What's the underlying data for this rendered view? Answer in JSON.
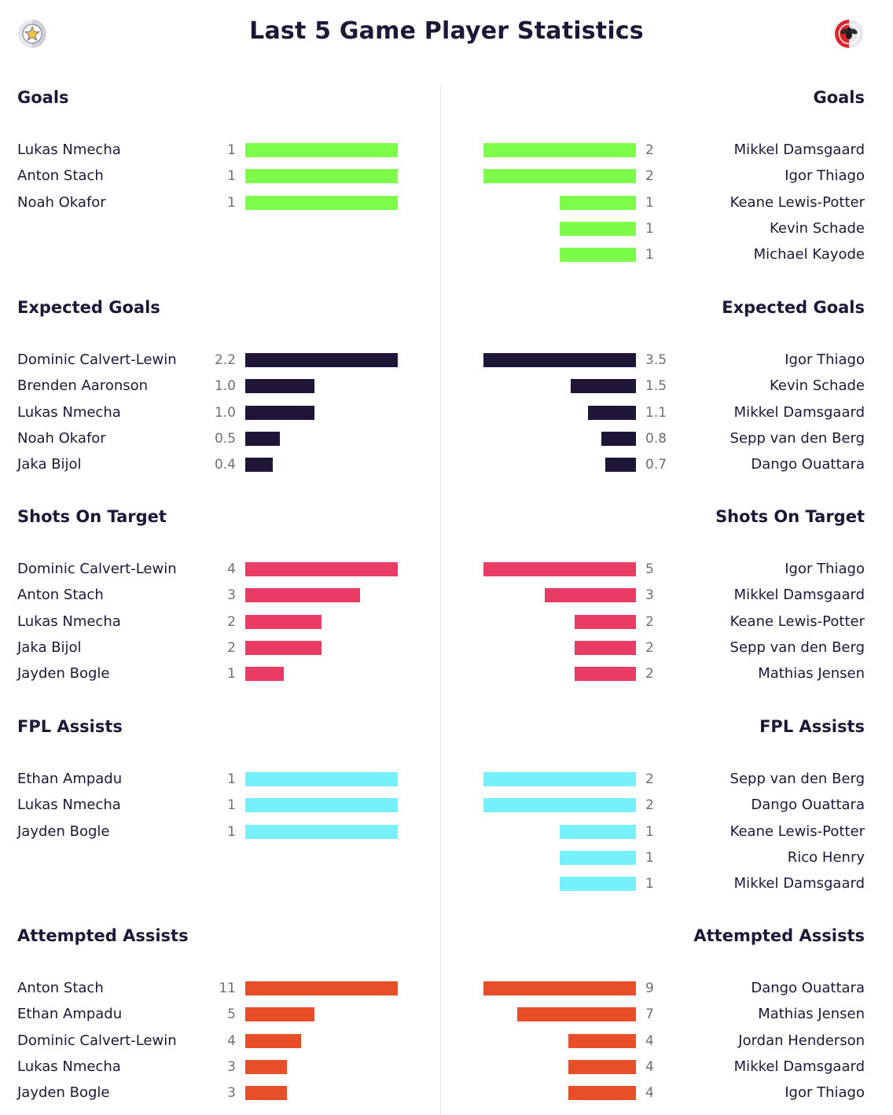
{
  "title": "Last 5 Game Player Statistics",
  "logos": {
    "left": "wolverhampton-wolves-style-crest-icon",
    "right": "brentford-bee-crest-icon"
  },
  "chart_data": [
    {
      "type": "bar",
      "title": "Goals",
      "color": "#7dfc4a",
      "left": [
        {
          "name": "Lukas Nmecha",
          "label": "1",
          "value": 1
        },
        {
          "name": "Anton Stach",
          "label": "1",
          "value": 1
        },
        {
          "name": "Noah Okafor",
          "label": "1",
          "value": 1
        }
      ],
      "right": [
        {
          "name": "Mikkel Damsgaard",
          "label": "2",
          "value": 2
        },
        {
          "name": "Igor Thiago",
          "label": "2",
          "value": 2
        },
        {
          "name": "Keane Lewis-Potter",
          "label": "1",
          "value": 1
        },
        {
          "name": "Kevin Schade",
          "label": "1",
          "value": 1
        },
        {
          "name": "Michael Kayode",
          "label": "1",
          "value": 1
        }
      ]
    },
    {
      "type": "bar",
      "title": "Expected Goals",
      "color": "#1e1537",
      "left": [
        {
          "name": "Dominic Calvert-Lewin",
          "label": "2.2",
          "value": 2.2
        },
        {
          "name": "Brenden Aaronson",
          "label": "1.0",
          "value": 1.0
        },
        {
          "name": "Lukas Nmecha",
          "label": "1.0",
          "value": 1.0
        },
        {
          "name": "Noah Okafor",
          "label": "0.5",
          "value": 0.5
        },
        {
          "name": "Jaka Bijol",
          "label": "0.4",
          "value": 0.4
        }
      ],
      "right": [
        {
          "name": "Igor Thiago",
          "label": "3.5",
          "value": 3.5
        },
        {
          "name": "Kevin Schade",
          "label": "1.5",
          "value": 1.5
        },
        {
          "name": "Mikkel Damsgaard",
          "label": "1.1",
          "value": 1.1
        },
        {
          "name": "Sepp van den Berg",
          "label": "0.8",
          "value": 0.8
        },
        {
          "name": "Dango Ouattara",
          "label": "0.7",
          "value": 0.7
        }
      ]
    },
    {
      "type": "bar",
      "title": "Shots On Target",
      "color": "#e83c64",
      "left": [
        {
          "name": "Dominic Calvert-Lewin",
          "label": "4",
          "value": 4
        },
        {
          "name": "Anton Stach",
          "label": "3",
          "value": 3
        },
        {
          "name": "Lukas Nmecha",
          "label": "2",
          "value": 2
        },
        {
          "name": "Jaka Bijol",
          "label": "2",
          "value": 2
        },
        {
          "name": "Jayden Bogle",
          "label": "1",
          "value": 1
        }
      ],
      "right": [
        {
          "name": "Igor Thiago",
          "label": "5",
          "value": 5
        },
        {
          "name": "Mikkel Damsgaard",
          "label": "3",
          "value": 3
        },
        {
          "name": "Keane Lewis-Potter",
          "label": "2",
          "value": 2
        },
        {
          "name": "Sepp van den Berg",
          "label": "2",
          "value": 2
        },
        {
          "name": "Mathias Jensen",
          "label": "2",
          "value": 2
        }
      ]
    },
    {
      "type": "bar",
      "title": "FPL Assists",
      "color": "#76f0fa",
      "left": [
        {
          "name": "Ethan Ampadu",
          "label": "1",
          "value": 1
        },
        {
          "name": "Lukas Nmecha",
          "label": "1",
          "value": 1
        },
        {
          "name": "Jayden Bogle",
          "label": "1",
          "value": 1
        }
      ],
      "right": [
        {
          "name": "Sepp van den Berg",
          "label": "2",
          "value": 2
        },
        {
          "name": "Dango Ouattara",
          "label": "2",
          "value": 2
        },
        {
          "name": "Keane Lewis-Potter",
          "label": "1",
          "value": 1
        },
        {
          "name": "Rico Henry",
          "label": "1",
          "value": 1
        },
        {
          "name": "Mikkel Damsgaard",
          "label": "1",
          "value": 1
        }
      ]
    },
    {
      "type": "bar",
      "title": "Attempted Assists",
      "color": "#e84e28",
      "left": [
        {
          "name": "Anton Stach",
          "label": "11",
          "value": 11
        },
        {
          "name": "Ethan Ampadu",
          "label": "5",
          "value": 5
        },
        {
          "name": "Dominic Calvert-Lewin",
          "label": "4",
          "value": 4
        },
        {
          "name": "Lukas Nmecha",
          "label": "3",
          "value": 3
        },
        {
          "name": "Jayden Bogle",
          "label": "3",
          "value": 3
        }
      ],
      "right": [
        {
          "name": "Dango Ouattara",
          "label": "9",
          "value": 9
        },
        {
          "name": "Mathias Jensen",
          "label": "7",
          "value": 7
        },
        {
          "name": "Jordan Henderson",
          "label": "4",
          "value": 4
        },
        {
          "name": "Mikkel Damsgaard",
          "label": "4",
          "value": 4
        },
        {
          "name": "Igor Thiago",
          "label": "4",
          "value": 4
        }
      ]
    }
  ]
}
